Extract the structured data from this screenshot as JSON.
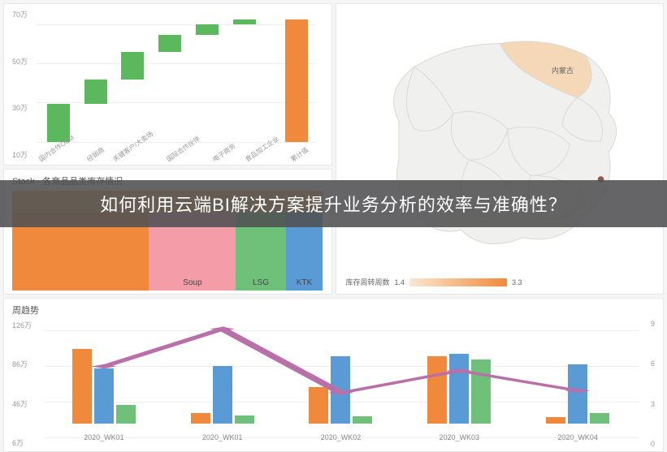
{
  "overlay_text": "如何利用云端BI解决方案提升业务分析的效率与准确性？",
  "waterfall": {
    "type": "waterfall",
    "y_ticks": [
      "70万",
      "50万",
      "30万",
      "10万"
    ],
    "ylim": [
      0,
      75
    ],
    "categories": [
      "国内合作OEM",
      "经销商",
      "关键客户/大卖场",
      "国际合作伙伴",
      "电子商务",
      "食品加工企业",
      "累计值"
    ],
    "bars": [
      {
        "bottom": 0,
        "height": 22,
        "color": "#5cb85c"
      },
      {
        "bottom": 22,
        "height": 14,
        "color": "#5cb85c"
      },
      {
        "bottom": 36,
        "height": 16,
        "color": "#5cb85c"
      },
      {
        "bottom": 52,
        "height": 10,
        "color": "#5cb85c"
      },
      {
        "bottom": 62,
        "height": 6,
        "color": "#5cb85c"
      },
      {
        "bottom": 68,
        "height": 3,
        "color": "#5cb85c"
      },
      {
        "bottom": 0,
        "height": 71,
        "color": "#f0893b"
      }
    ],
    "label_fontsize": 8,
    "grid_color": "#eeeeee",
    "background_color": "#ffffff"
  },
  "treemap": {
    "title": "Stock - 各商品品类库存情况",
    "type": "treemap",
    "cells": [
      {
        "label": "",
        "color": "#f0893b",
        "width": 44
      },
      {
        "label": "Soup",
        "color": "#f49ca8",
        "width": 28
      },
      {
        "label": "LSG",
        "color": "#6fc17a",
        "width": 16
      },
      {
        "label": "KTK",
        "color": "#5b9bd5",
        "width": 12
      }
    ],
    "top_band_color": "#f7b55e",
    "label_fontsize": 10
  },
  "map": {
    "type": "choropleth",
    "region": "China",
    "base_fill": "#f0f0ee",
    "border_color": "#d8d8d6",
    "highlight_fill": "#f5d8b8",
    "marker_color": "#8a5a44",
    "province_label": "内蒙古",
    "legend": {
      "label": "库存周转周数",
      "min": "1.4",
      "max": "3.3",
      "gradient": [
        "#fce7d2",
        "#f0893b"
      ]
    }
  },
  "trend": {
    "title": "周趋势",
    "type": "grouped-bar-line",
    "y_left_ticks": [
      "126万",
      "86万",
      "46万",
      "6万"
    ],
    "y_right_ticks": [
      "9",
      "6",
      "3",
      "0"
    ],
    "ylim_left": [
      0,
      130
    ],
    "ylim_right": [
      0,
      9
    ],
    "x_labels": [
      "2020_WK01",
      "2020_WK01",
      "2020_WK02",
      "2020_WK03",
      "2020_WK04"
    ],
    "series_colors": {
      "orange": "#f0893b",
      "blue": "#5b9bd5",
      "green": "#6fc17a"
    },
    "groups": [
      {
        "orange": 98,
        "blue": 72,
        "green": 24
      },
      {
        "orange": 14,
        "blue": 76,
        "green": 11
      },
      {
        "orange": 48,
        "blue": 88,
        "green": 10
      },
      {
        "orange": 88,
        "blue": 92,
        "green": 84
      },
      {
        "orange": 9,
        "blue": 78,
        "green": 14
      }
    ],
    "line": {
      "color": "#b96fa8",
      "width": 2,
      "marker": "diamond",
      "points": [
        5.2,
        8.6,
        2.8,
        4.8,
        3.0
      ]
    },
    "grid_color": "#eeeeee"
  }
}
